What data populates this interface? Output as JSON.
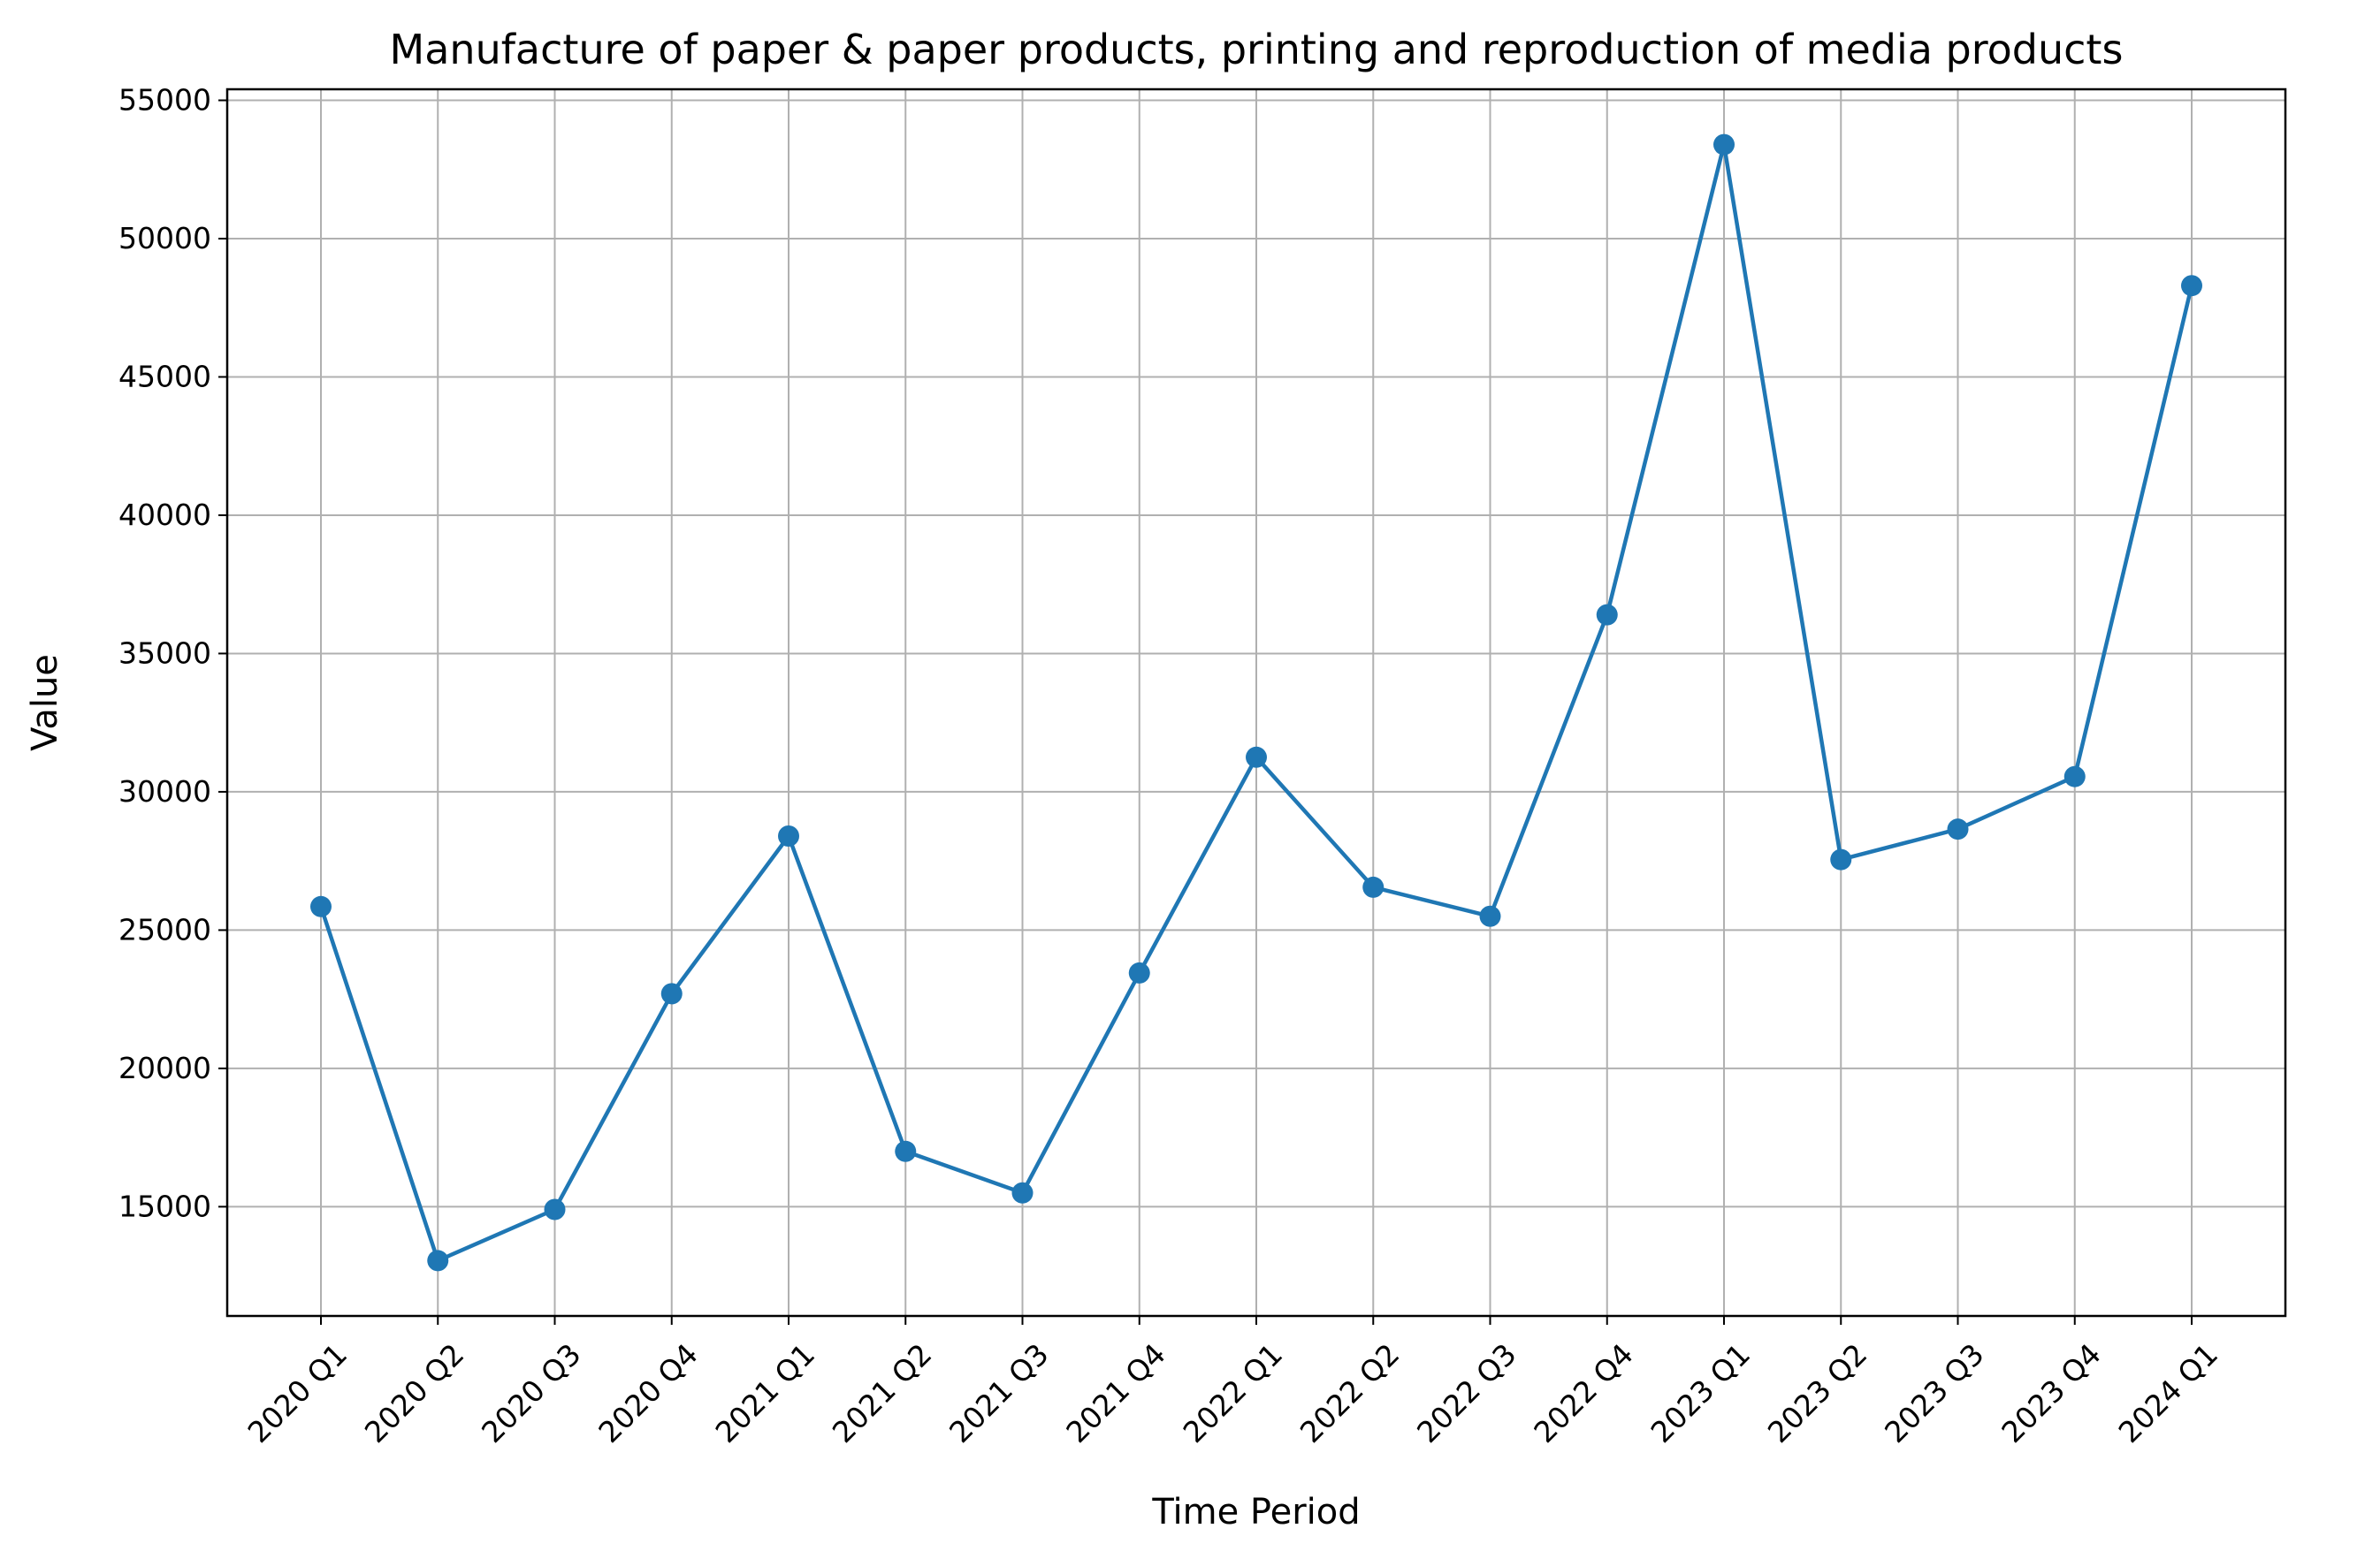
{
  "chart_data": {
    "type": "line",
    "title": "Manufacture of paper & paper products, printing and reproduction of media products",
    "xlabel": "Time Period",
    "ylabel": "Value",
    "categories": [
      "2020 Q1",
      "2020 Q2",
      "2020 Q3",
      "2020 Q4",
      "2021 Q1",
      "2021 Q2",
      "2021 Q3",
      "2021 Q4",
      "2022 Q1",
      "2022 Q2",
      "2022 Q3",
      "2022 Q4",
      "2023 Q1",
      "2023 Q2",
      "2023 Q3",
      "2023 Q4",
      "2024 Q1"
    ],
    "series": [
      {
        "values": [
          25850,
          13050,
          14900,
          22700,
          28400,
          17000,
          15500,
          23450,
          31250,
          26550,
          25500,
          36400,
          53400,
          27550,
          28650,
          30550,
          48300
        ]
      }
    ],
    "y_ticks": [
      "15000",
      "20000",
      "25000",
      "30000",
      "35000",
      "40000",
      "45000",
      "50000",
      "55000"
    ],
    "ylim": [
      11050,
      55400
    ],
    "grid": true,
    "line_color": "#1f77b4",
    "marker": "circle"
  }
}
